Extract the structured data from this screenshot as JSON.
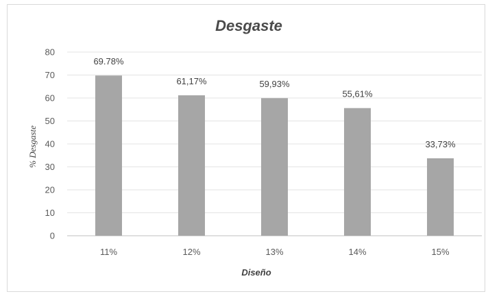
{
  "chart_data": {
    "type": "bar",
    "title": "Desgaste",
    "xlabel": "Diseño",
    "ylabel": "% Desgaste",
    "categories": [
      "11%",
      "12%",
      "13%",
      "14%",
      "15%"
    ],
    "values": [
      69.78,
      61.17,
      59.93,
      55.61,
      33.73
    ],
    "data_labels": [
      "69.78%",
      "61,17%",
      "59,93%",
      "55,61%",
      "33,73%"
    ],
    "ylim": [
      0,
      80
    ],
    "yticks": [
      "0",
      "10",
      "20",
      "30",
      "40",
      "50",
      "60",
      "70",
      "80"
    ],
    "grid": true,
    "legend": "none",
    "bar_color": "#a6a6a6",
    "grid_color": "#e3e3e3"
  }
}
